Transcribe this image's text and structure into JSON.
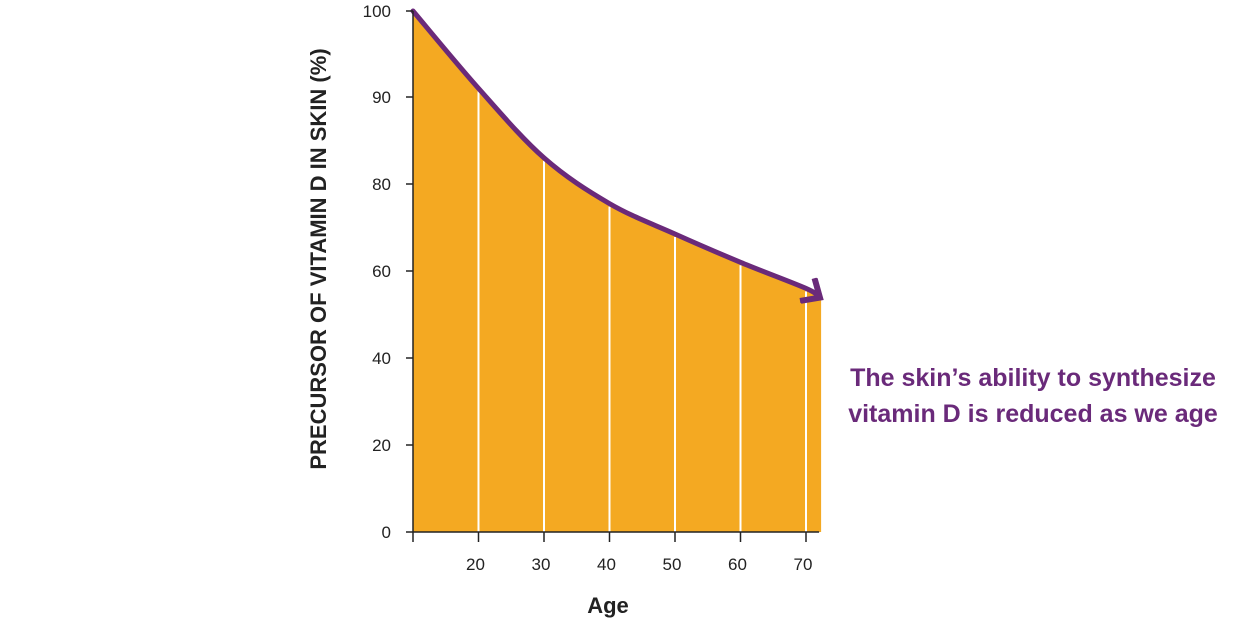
{
  "chart_data": {
    "type": "area",
    "title": "",
    "xlabel": "Age",
    "ylabel": "PRECURSOR OF VITAMIN D IN SKIN (%)",
    "x_ticks": [
      20,
      30,
      40,
      50,
      60,
      70
    ],
    "y_ticks": [
      0,
      20,
      40,
      60,
      80,
      90,
      100
    ],
    "xlim": [
      10,
      72
    ],
    "x": [
      10,
      20,
      30,
      40,
      50,
      60,
      70,
      72
    ],
    "y": [
      100,
      91,
      83,
      75.5,
      68.5,
      62,
      56,
      54
    ],
    "fill_color": "#f4a922",
    "line_color": "#6a2a7a",
    "grid": "vertical white lines at x ticks",
    "annotation": {
      "line1": "The skin’s ability to synthesize",
      "line2": "vitamin D is reduced as we age"
    }
  }
}
